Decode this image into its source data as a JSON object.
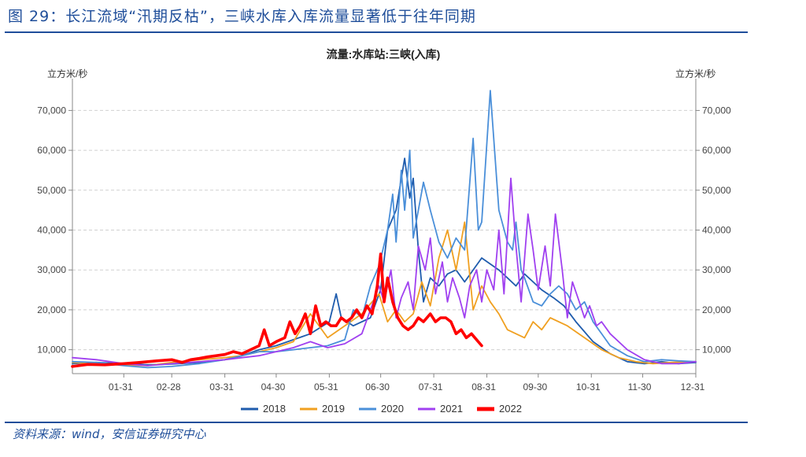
{
  "figure": {
    "title": "图 29：长江流域“汛期反枯”，三峡水库入库流量显著低于往年同期",
    "source": "资料来源：wind，安信证券研究中心"
  },
  "chart_data": {
    "type": "line",
    "title": "流量:水库站:三峡(入库)",
    "ylabel_left": "立方米/秒",
    "ylabel_right": "立方米/秒",
    "ylim": [
      4000,
      76000
    ],
    "yticks": [
      10000,
      20000,
      30000,
      40000,
      50000,
      60000,
      70000
    ],
    "ytick_labels": [
      "10,000",
      "20,000",
      "30,000",
      "40,000",
      "50,000",
      "60,000",
      "70,000"
    ],
    "xlim": [
      1,
      365
    ],
    "xtick_labels": [
      "01-31",
      "02-28",
      "03-31",
      "04-30",
      "05-31",
      "06-30",
      "07-31",
      "08-31",
      "09-30",
      "10-31",
      "11-30",
      "12-31"
    ],
    "xtick_days": [
      31,
      59,
      90,
      120,
      151,
      181,
      212,
      243,
      273,
      304,
      334,
      365
    ],
    "grid": true,
    "legend_position": "bottom",
    "colors": {
      "2018": "#1f5cad",
      "2019": "#f0a021",
      "2020": "#4a8fd9",
      "2021": "#a040f0",
      "2022": "#ff0000"
    },
    "series": [
      {
        "name": "2018",
        "x": [
          1,
          15,
          31,
          45,
          59,
          75,
          90,
          100,
          110,
          120,
          130,
          140,
          151,
          155,
          158,
          165,
          175,
          181,
          185,
          190,
          195,
          198,
          200,
          203,
          206,
          210,
          215,
          220,
          225,
          230,
          240,
          250,
          255,
          260,
          265,
          270,
          275,
          282,
          288,
          295,
          305,
          315,
          325,
          335,
          345,
          355,
          365
        ],
        "values": [
          6500,
          6800,
          6500,
          6200,
          6400,
          6800,
          7500,
          8500,
          10000,
          11000,
          12500,
          14000,
          17000,
          24000,
          18000,
          16000,
          18000,
          25000,
          40000,
          45000,
          58000,
          48000,
          53000,
          35000,
          22000,
          28000,
          26000,
          29000,
          30000,
          27000,
          33000,
          30000,
          28000,
          26000,
          29000,
          27000,
          25000,
          23000,
          21000,
          17000,
          12000,
          9000,
          7000,
          6500,
          7000,
          6500,
          6800
        ]
      },
      {
        "name": "2019",
        "x": [
          1,
          15,
          31,
          45,
          59,
          75,
          90,
          100,
          110,
          120,
          130,
          140,
          150,
          160,
          170,
          180,
          185,
          190,
          195,
          200,
          205,
          210,
          215,
          220,
          225,
          230,
          235,
          240,
          245,
          250,
          255,
          260,
          265,
          270,
          275,
          280,
          290,
          300,
          310,
          320,
          330,
          340,
          350,
          365
        ],
        "values": [
          6800,
          6500,
          6200,
          6000,
          6800,
          7500,
          8000,
          8500,
          9500,
          10500,
          12000,
          19000,
          13000,
          16000,
          19000,
          24000,
          17000,
          20000,
          17000,
          19000,
          27000,
          21000,
          33000,
          40000,
          30000,
          42000,
          20000,
          26000,
          22000,
          19000,
          15000,
          14000,
          13000,
          17000,
          15000,
          18000,
          16000,
          13000,
          10000,
          8000,
          7000,
          6500,
          6800,
          7000
        ]
      },
      {
        "name": "2020",
        "x": [
          1,
          15,
          31,
          45,
          59,
          75,
          90,
          100,
          110,
          120,
          130,
          140,
          150,
          160,
          165,
          170,
          175,
          180,
          185,
          188,
          190,
          193,
          195,
          198,
          200,
          203,
          206,
          210,
          215,
          220,
          225,
          230,
          235,
          238,
          240,
          245,
          250,
          255,
          258,
          260,
          263,
          265,
          270,
          275,
          280,
          285,
          290,
          295,
          300,
          305,
          315,
          325,
          335,
          345,
          355,
          365
        ],
        "values": [
          7000,
          6800,
          6000,
          5500,
          5800,
          6500,
          7500,
          8500,
          9500,
          9500,
          10000,
          10500,
          11000,
          12500,
          20000,
          18000,
          26000,
          31000,
          40000,
          49000,
          37000,
          55000,
          45000,
          60000,
          38000,
          45000,
          52000,
          45000,
          37000,
          33000,
          38000,
          35000,
          63000,
          40000,
          42000,
          75000,
          45000,
          37000,
          35000,
          42000,
          30000,
          28000,
          22000,
          21000,
          24000,
          26000,
          24000,
          20000,
          22000,
          17000,
          11000,
          8500,
          7000,
          7500,
          7200,
          7000
        ]
      },
      {
        "name": "2021",
        "x": [
          1,
          15,
          31,
          45,
          59,
          75,
          90,
          100,
          110,
          120,
          130,
          140,
          150,
          160,
          170,
          180,
          183,
          187,
          190,
          193,
          197,
          200,
          203,
          207,
          210,
          213,
          217,
          220,
          223,
          227,
          230,
          233,
          237,
          240,
          243,
          247,
          250,
          253,
          257,
          260,
          263,
          267,
          270,
          273,
          277,
          280,
          283,
          287,
          290,
          293,
          297,
          300,
          303,
          307,
          310,
          315,
          325,
          335,
          345,
          355,
          365
        ],
        "values": [
          8000,
          7500,
          6500,
          6000,
          6500,
          7000,
          7500,
          8000,
          8500,
          9500,
          10500,
          12000,
          10500,
          11500,
          14000,
          26000,
          22000,
          30000,
          18000,
          23000,
          27000,
          20000,
          36000,
          30000,
          38000,
          24000,
          32000,
          22000,
          28000,
          23000,
          18000,
          26000,
          30000,
          22000,
          30000,
          25000,
          40000,
          24000,
          53000,
          36000,
          22000,
          44000,
          35000,
          25000,
          36000,
          26000,
          44000,
          30000,
          18000,
          27000,
          22000,
          18000,
          21000,
          16000,
          17000,
          14000,
          10000,
          7500,
          6500,
          6500,
          7000
        ]
      },
      {
        "name": "2022",
        "x": [
          1,
          10,
          20,
          31,
          40,
          50,
          59,
          65,
          70,
          75,
          80,
          85,
          90,
          95,
          100,
          105,
          110,
          113,
          116,
          120,
          125,
          128,
          131,
          134,
          137,
          140,
          143,
          146,
          149,
          152,
          155,
          158,
          161,
          164,
          167,
          170,
          173,
          176,
          179,
          181,
          183,
          185,
          188,
          191,
          194,
          197,
          200,
          203,
          206,
          210,
          213,
          216,
          219,
          222,
          225,
          228,
          231,
          234,
          237,
          240
        ],
        "values": [
          5800,
          6300,
          6200,
          6500,
          6800,
          7200,
          7500,
          6800,
          7500,
          7800,
          8200,
          8500,
          8800,
          9500,
          9000,
          10000,
          11000,
          15000,
          11000,
          12000,
          13000,
          17000,
          14000,
          16000,
          19000,
          14000,
          21000,
          16000,
          17000,
          16000,
          16000,
          18000,
          17000,
          18000,
          20000,
          18000,
          21000,
          19000,
          26000,
          34000,
          22000,
          28000,
          22000,
          18000,
          16000,
          15000,
          16000,
          18000,
          17000,
          19000,
          17000,
          18000,
          18000,
          17000,
          14000,
          15000,
          13000,
          14000,
          12500,
          11000
        ]
      }
    ]
  }
}
